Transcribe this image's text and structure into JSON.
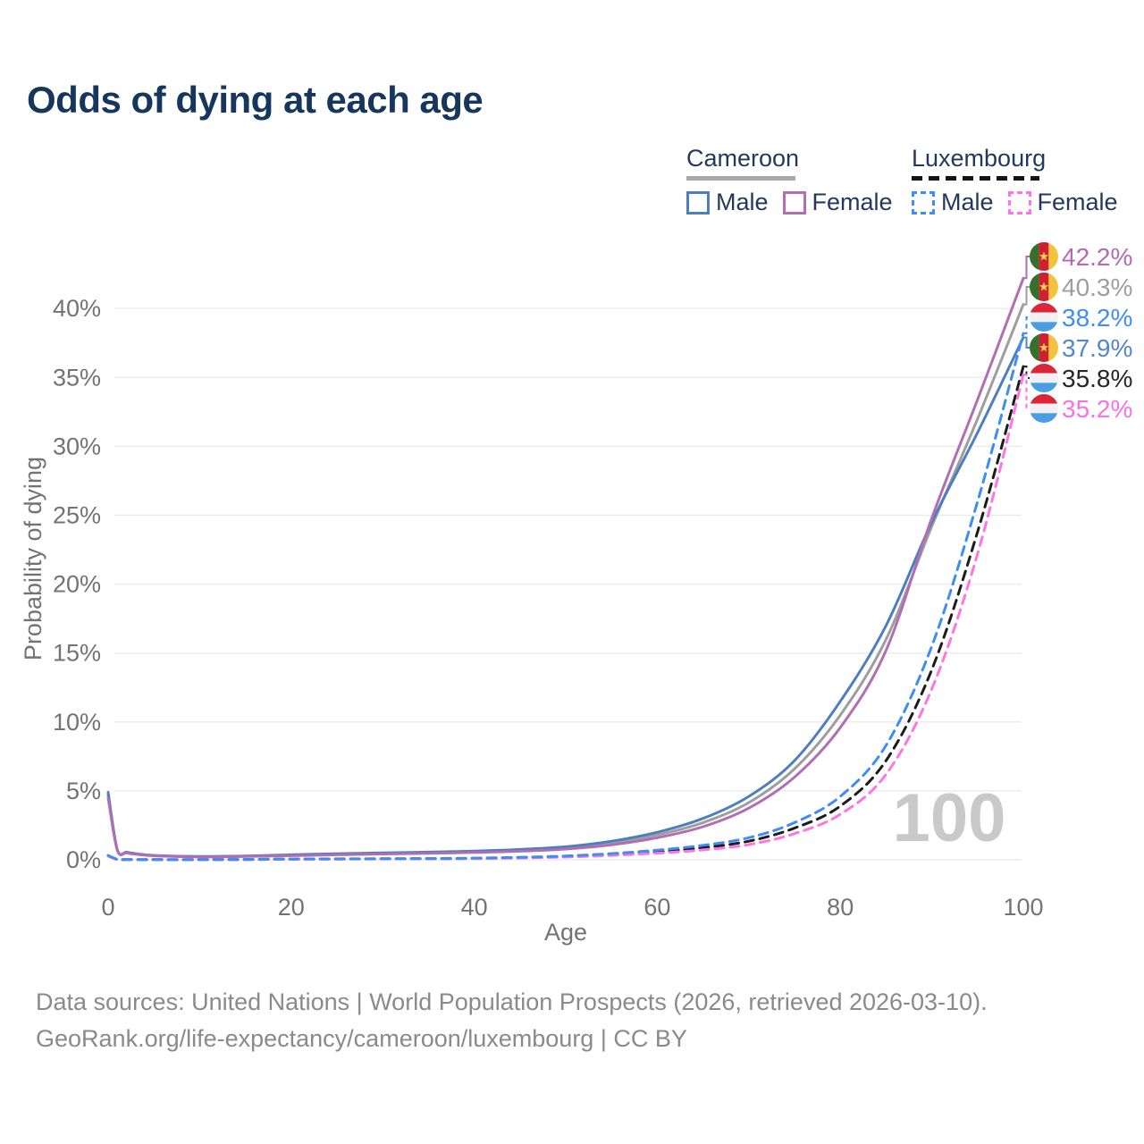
{
  "title": "Odds of dying at each age",
  "legend": {
    "groups": [
      {
        "country": "Cameroon",
        "style": "solid",
        "entries": [
          {
            "label": "Male"
          },
          {
            "label": "Female"
          }
        ]
      },
      {
        "country": "Luxembourg",
        "style": "dashed",
        "entries": [
          {
            "label": "Male"
          },
          {
            "label": "Female"
          }
        ]
      }
    ]
  },
  "colors": {
    "title_text": "#16365c",
    "legend_text": "#22395e",
    "axis_text": "#737373",
    "gridline": "#ececec",
    "watermark": "#c9c9c9",
    "footer_text": "#8a8a8a",
    "cameroon_male": "#4d7ec0",
    "cameroon_female": "#b06fb2",
    "cameroon_both": "#9e9e9e",
    "luxembourg_male": "#3f8df2",
    "luxembourg_female": "#fb76e4",
    "luxembourg_both": "#1c1c1c"
  },
  "chart_data": {
    "type": "line",
    "title": "Odds of dying at each age",
    "xlabel": "Age",
    "ylabel": "Probability of dying",
    "xlim": [
      0,
      100
    ],
    "ylim_pct": [
      0,
      44
    ],
    "x_ticks": [
      0,
      20,
      40,
      60,
      80,
      100
    ],
    "y_ticks_pct": [
      0,
      5,
      10,
      15,
      20,
      25,
      30,
      35,
      40
    ],
    "grid": "horizontal",
    "legend_position": "top-right",
    "watermark": "100",
    "ages": [
      0,
      1,
      2,
      3,
      5,
      10,
      15,
      20,
      25,
      30,
      35,
      40,
      45,
      50,
      55,
      60,
      65,
      70,
      75,
      80,
      85,
      90,
      95,
      100
    ],
    "series": [
      {
        "name": "Cameroon",
        "slug": "cameroon-both",
        "sex": "both",
        "style": "solid",
        "color": "#9e9e9e",
        "values": [
          4.7,
          0.72,
          0.52,
          0.42,
          0.3,
          0.22,
          0.26,
          0.33,
          0.4,
          0.46,
          0.52,
          0.58,
          0.68,
          0.87,
          1.2,
          1.8,
          2.7,
          4.15,
          6.6,
          10.5,
          16.0,
          24.2,
          32.0,
          40.3
        ]
      },
      {
        "name": "Cameroon Male",
        "slug": "cameroon-male",
        "sex": "male",
        "style": "solid",
        "color": "#4d7ec0",
        "values": [
          4.9,
          0.75,
          0.55,
          0.45,
          0.32,
          0.24,
          0.28,
          0.36,
          0.44,
          0.5,
          0.56,
          0.63,
          0.75,
          0.95,
          1.35,
          2.0,
          3.0,
          4.6,
          7.2,
          11.5,
          17.0,
          24.5,
          31.0,
          37.9
        ]
      },
      {
        "name": "Cameroon Female",
        "slug": "cameroon-female",
        "sex": "female",
        "style": "solid",
        "color": "#b06fb2",
        "values": [
          4.5,
          0.7,
          0.5,
          0.4,
          0.29,
          0.21,
          0.24,
          0.3,
          0.36,
          0.42,
          0.47,
          0.53,
          0.62,
          0.78,
          1.08,
          1.6,
          2.4,
          3.75,
          6.0,
          9.6,
          15.2,
          24.8,
          33.4,
          42.2
        ]
      },
      {
        "name": "Luxembourg",
        "slug": "luxembourg-both",
        "sex": "both",
        "style": "dashed",
        "color": "#1c1c1c",
        "values": [
          0.29,
          0.03,
          0.02,
          0.01,
          0.01,
          0.01,
          0.02,
          0.05,
          0.06,
          0.07,
          0.08,
          0.1,
          0.15,
          0.24,
          0.38,
          0.58,
          0.88,
          1.35,
          2.3,
          3.9,
          7.2,
          13.8,
          23.8,
          35.8
        ]
      },
      {
        "name": "Luxembourg Female",
        "slug": "luxembourg-female",
        "sex": "female",
        "style": "dashed",
        "color": "#fb76e4",
        "values": [
          0.26,
          0.03,
          0.02,
          0.01,
          0.01,
          0.01,
          0.02,
          0.04,
          0.05,
          0.06,
          0.07,
          0.09,
          0.13,
          0.2,
          0.32,
          0.48,
          0.72,
          1.1,
          1.9,
          3.3,
          6.2,
          12.4,
          22.2,
          35.2
        ]
      },
      {
        "name": "Luxembourg Male",
        "slug": "luxembourg-male",
        "sex": "male",
        "style": "dashed",
        "color": "#3f8df2",
        "values": [
          0.32,
          0.04,
          0.02,
          0.02,
          0.01,
          0.01,
          0.03,
          0.06,
          0.07,
          0.08,
          0.09,
          0.12,
          0.18,
          0.28,
          0.45,
          0.7,
          1.05,
          1.6,
          2.7,
          4.6,
          8.3,
          15.5,
          26.0,
          38.2
        ]
      }
    ],
    "end_labels": [
      {
        "text": "42.2%",
        "pct": 42.2,
        "color": "#b36ab3",
        "flag": "cameroon",
        "series": "Cameroon Female",
        "style": "solid"
      },
      {
        "text": "40.3%",
        "pct": 40.3,
        "color": "#9e9e9e",
        "flag": "cameroon",
        "series": "Cameroon",
        "style": "solid"
      },
      {
        "text": "38.2%",
        "pct": 38.2,
        "color": "#3f8df2",
        "flag": "luxembourg",
        "series": "Luxembourg Male",
        "style": "dashed"
      },
      {
        "text": "37.9%",
        "pct": 37.9,
        "color": "#5585cc",
        "flag": "cameroon",
        "series": "Cameroon Male",
        "style": "solid"
      },
      {
        "text": "35.8%",
        "pct": 35.8,
        "color": "#262626",
        "flag": "luxembourg",
        "series": "Luxembourg",
        "style": "dashed"
      },
      {
        "text": "35.2%",
        "pct": 35.2,
        "color": "#f772e2",
        "flag": "luxembourg",
        "series": "Luxembourg Female",
        "style": "dashed"
      }
    ]
  },
  "footer": {
    "line1": "Data sources: United Nations | World Population Prospects (2026, retrieved 2026-03-10).",
    "line2": "GeoRank.org/life-expectancy/cameroon/luxembourg | CC BY"
  }
}
